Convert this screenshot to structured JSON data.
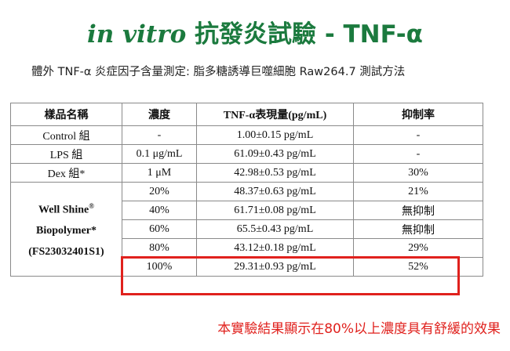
{
  "header": {
    "title_italic": "in vitro",
    "title_rest": "抗發炎試驗 - TNF-α",
    "subtitle": "體外 TNF-α 炎症因子含量測定: 脂多糖誘導巨噬細胞 Raw264.7 測試方法"
  },
  "table": {
    "headers": [
      "樣品名稱",
      "濃度",
      "TNF-α表現量(pg/mL)",
      "抑制率"
    ],
    "rows": [
      {
        "sample": "Control 組",
        "conc": "-",
        "tnf": "1.00±0.15 pg/mL",
        "inhib": "-"
      },
      {
        "sample": "LPS 組",
        "conc": "0.1 μg/mL",
        "tnf": "61.09±0.43 pg/mL",
        "inhib": "-"
      },
      {
        "sample": "Dex 組*",
        "conc": "1 μM",
        "tnf": "42.98±0.53 pg/mL",
        "inhib": "30%"
      }
    ],
    "group": {
      "line1": "Well Shine",
      "reg": "®",
      "line2": "Biopolymer*",
      "line3": "(FS23032401S1)",
      "rows": [
        {
          "conc": "20%",
          "tnf": "48.37±0.63 pg/mL",
          "inhib": "21%"
        },
        {
          "conc": "40%",
          "tnf": "61.71±0.08 pg/mL",
          "inhib": "無抑制"
        },
        {
          "conc": "60%",
          "tnf": "65.5±0.43 pg/mL",
          "inhib": "無抑制"
        },
        {
          "conc": "80%",
          "tnf": "43.12±0.18 pg/mL",
          "inhib": "29%"
        },
        {
          "conc": "100%",
          "tnf": "29.31±0.93 pg/mL",
          "inhib": "52%"
        }
      ]
    }
  },
  "footer": {
    "conclusion": "本實驗結果顯示在80%以上濃度具有舒緩的效果"
  },
  "colors": {
    "title_green": "#1b7a3e",
    "highlight_red": "#e0211d"
  }
}
